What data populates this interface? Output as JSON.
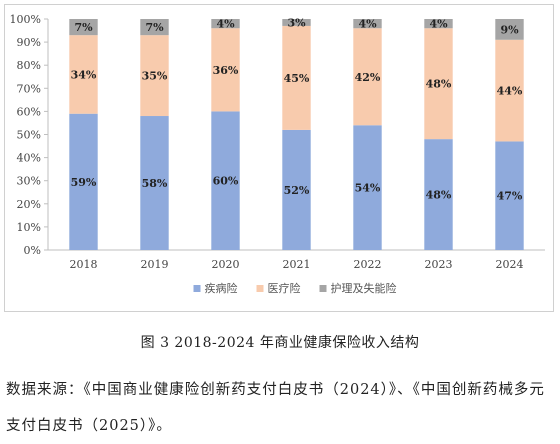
{
  "chart_data": {
    "type": "bar",
    "stacked": true,
    "percent_stacked": true,
    "categories": [
      "2018",
      "2019",
      "2020",
      "2021",
      "2022",
      "2023",
      "2024"
    ],
    "series": [
      {
        "name": "疾病险",
        "color": "#8faadc",
        "values": [
          59,
          58,
          60,
          52,
          54,
          48,
          47
        ],
        "labels": [
          "59%",
          "58%",
          "60%",
          "52%",
          "54%",
          "48%",
          "47%"
        ]
      },
      {
        "name": "医疗险",
        "color": "#f8cbad",
        "values": [
          34,
          35,
          36,
          45,
          42,
          48,
          44
        ],
        "labels": [
          "34%",
          "35%",
          "36%",
          "45%",
          "42%",
          "48%",
          "44%"
        ]
      },
      {
        "name": "护理及失能险",
        "color": "#a5a5a5",
        "values": [
          7,
          7,
          4,
          3,
          4,
          4,
          9
        ],
        "labels": [
          "7%",
          "7%",
          "4%",
          "3%",
          "4%",
          "4%",
          "9%"
        ]
      }
    ],
    "yticks": [
      "0%",
      "10%",
      "20%",
      "30%",
      "40%",
      "50%",
      "60%",
      "70%",
      "80%",
      "90%",
      "100%"
    ],
    "ylim": [
      0,
      100
    ],
    "grid": false,
    "legend_position": "bottom"
  },
  "caption": "图 3   2018-2024 年商业健康保险收入结构",
  "source": "数据来源：《中国商业健康险创新药支付白皮书（2024）》、《中国创新药械多元支付白皮书（2025）》。"
}
